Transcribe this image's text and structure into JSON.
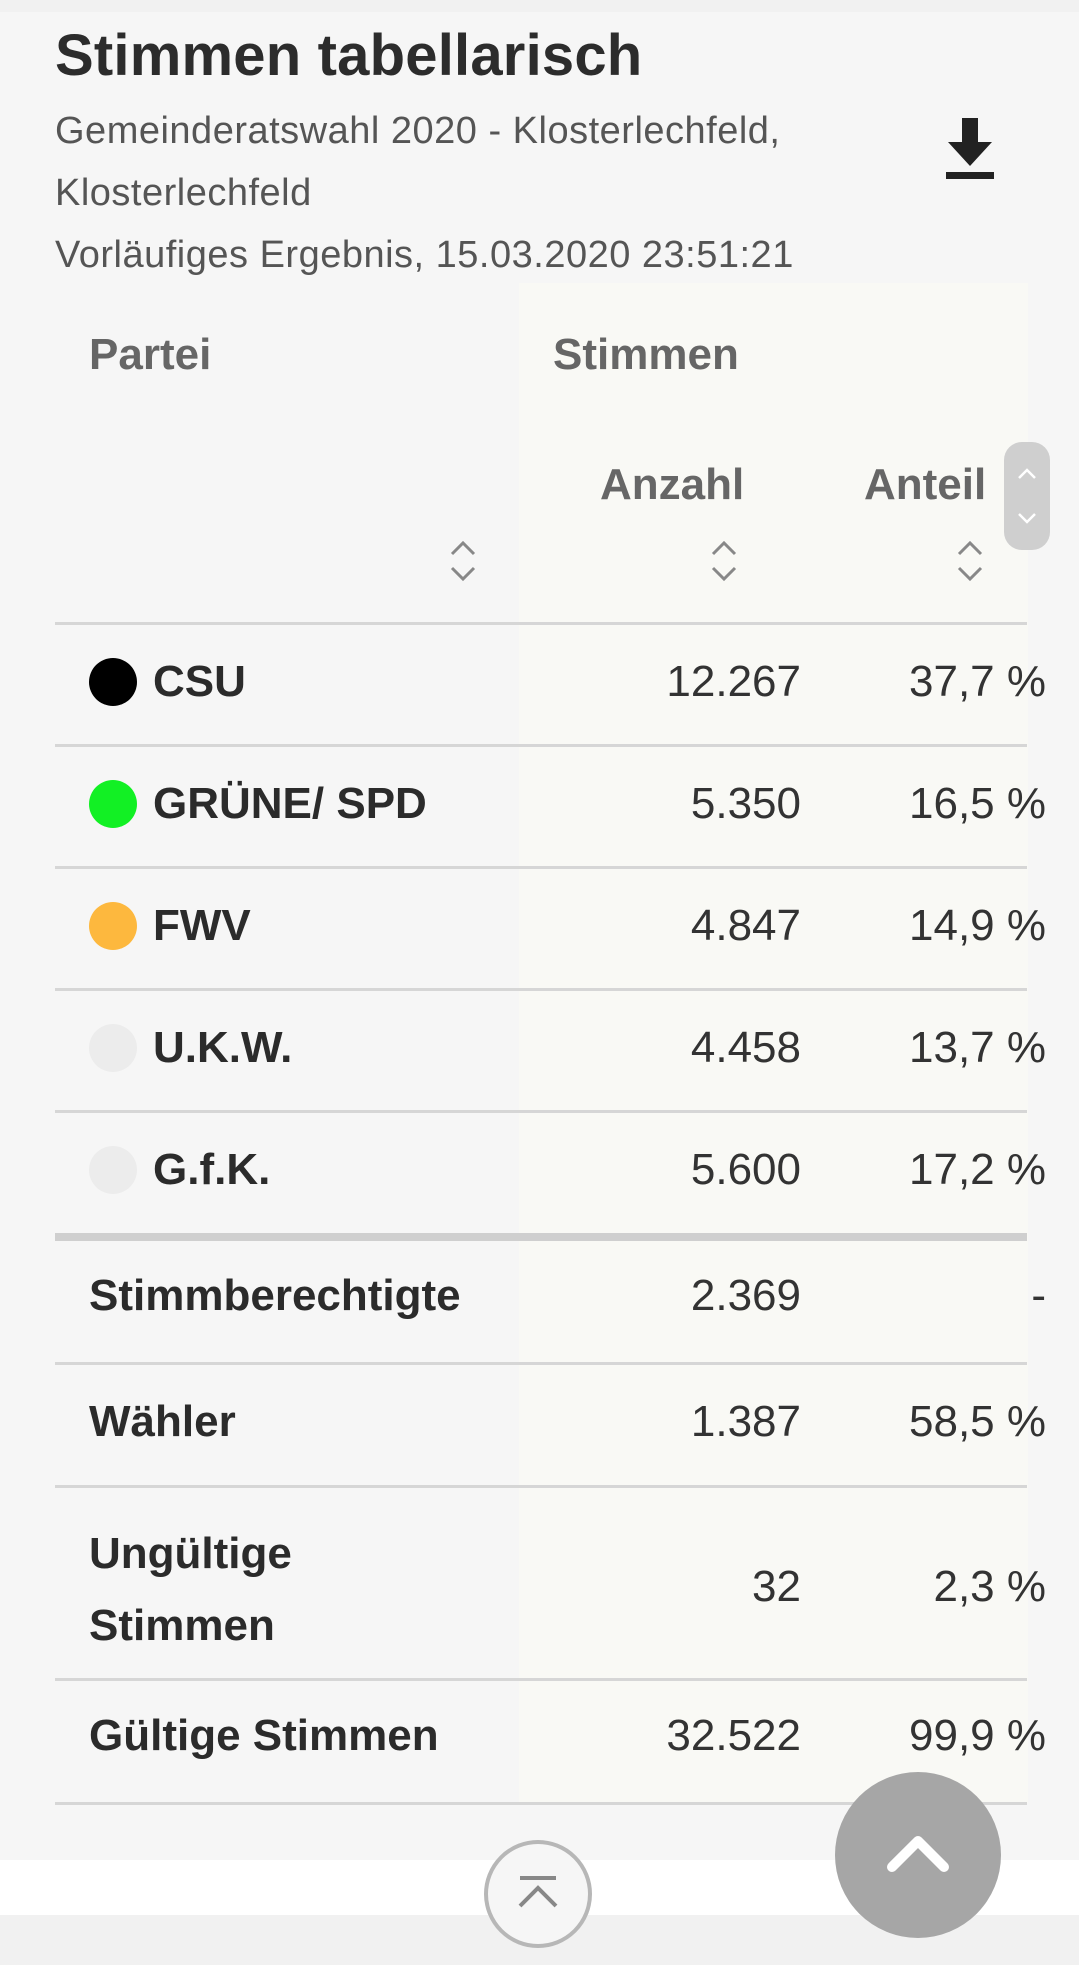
{
  "header": {
    "title": "Stimmen tabellarisch",
    "subtitle_line1": "Gemeinderatswahl 2020 - Klosterlechfeld,",
    "subtitle_line2": "Klosterlechfeld",
    "status": "Vorläufiges Ergebnis, 15.03.2020 23:51:21",
    "download_icon": "download-icon"
  },
  "table": {
    "col_partei": "Partei",
    "col_stimmen": "Stimmen",
    "col_anzahl": "Anzahl",
    "col_anteil": "Anteil",
    "parties": [
      {
        "name": "CSU",
        "color": "#000000",
        "anzahl": "12.267",
        "anteil": "37,7 %"
      },
      {
        "name": "GRÜNE/ SPD",
        "color": "#12f024",
        "anzahl": "5.350",
        "anteil": "16,5 %"
      },
      {
        "name": "FWV",
        "color": "#fdb83e",
        "anzahl": "4.847",
        "anteil": "14,9 %"
      },
      {
        "name": "U.K.W.",
        "color": "#ececec",
        "anzahl": "4.458",
        "anteil": "13,7 %"
      },
      {
        "name": "G.f.K.",
        "color": "#ececec",
        "anzahl": "5.600",
        "anteil": "17,2 %"
      }
    ],
    "summary": [
      {
        "name": "Stimmberechtigte",
        "anzahl": "2.369",
        "anteil": "-"
      },
      {
        "name": "Wähler",
        "anzahl": "1.387",
        "anteil": "58,5 %"
      },
      {
        "name_line1": "Ungültige",
        "name_line2": "Stimmen",
        "anzahl": "32",
        "anteil": "2,3 %"
      },
      {
        "name": "Gültige Stimmen",
        "anzahl": "32.522",
        "anteil": "99,9 %"
      }
    ]
  },
  "controls": {
    "scroll_top_icon": "chevron-up-icon",
    "page_top_icon": "arrow-to-top-icon"
  }
}
